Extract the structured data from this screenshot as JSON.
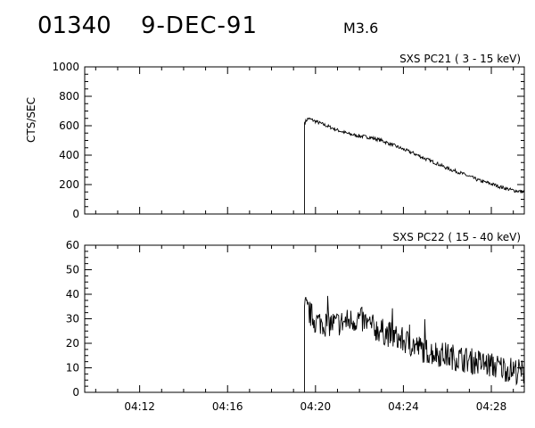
{
  "header": {
    "event_id": "01340",
    "date": "9-DEC-91",
    "flare_class": "M3.6"
  },
  "chart_data": [
    {
      "type": "line",
      "title": "SXS PC21  (  3 - 15 keV)",
      "ylabel": "CTS/SEC",
      "xlabel": "",
      "xlim": [
        "04:09:30",
        "04:29:30"
      ],
      "ylim": [
        0,
        1000
      ],
      "yticks": [
        "0",
        "200",
        "400",
        "600",
        "800",
        "1000"
      ],
      "xtick_labels_shown": false,
      "grid": false,
      "color": "#000000",
      "series": [
        {
          "points": [
            [
              "04:19:30",
              0
            ],
            [
              "04:19:30",
              620
            ],
            [
              "04:19:40",
              650
            ],
            [
              "04:20:00",
              630
            ],
            [
              "04:20:30",
              600
            ],
            [
              "04:21:00",
              570
            ],
            [
              "04:21:30",
              545
            ],
            [
              "04:22:00",
              530
            ],
            [
              "04:22:30",
              520
            ],
            [
              "04:23:00",
              500
            ],
            [
              "04:23:30",
              470
            ],
            [
              "04:24:00",
              440
            ],
            [
              "04:24:30",
              410
            ],
            [
              "04:25:00",
              375
            ],
            [
              "04:25:30",
              345
            ],
            [
              "04:26:00",
              310
            ],
            [
              "04:26:30",
              285
            ],
            [
              "04:27:00",
              255
            ],
            [
              "04:27:30",
              225
            ],
            [
              "04:28:00",
              205
            ],
            [
              "04:28:30",
              180
            ],
            [
              "04:29:00",
              160
            ],
            [
              "04:29:30",
              150
            ]
          ]
        }
      ]
    },
    {
      "type": "line",
      "title": "SXS PC22  ( 15 - 40 keV)",
      "ylabel": "",
      "xlabel": "",
      "xlim": [
        "04:09:30",
        "04:29:30"
      ],
      "ylim": [
        0,
        60
      ],
      "yticks": [
        "0",
        "10",
        "20",
        "30",
        "40",
        "50",
        "60"
      ],
      "xticks": [
        "04:12",
        "04:16",
        "04:20",
        "04:24",
        "04:28"
      ],
      "grid": false,
      "color": "#000000",
      "series": [
        {
          "points": [
            [
              "04:19:30",
              0
            ],
            [
              "04:19:30",
              35
            ],
            [
              "04:20:00",
              29
            ],
            [
              "04:20:30",
              28
            ],
            [
              "04:21:00",
              28
            ],
            [
              "04:21:30",
              29
            ],
            [
              "04:22:00",
              30
            ],
            [
              "04:22:30",
              27
            ],
            [
              "04:23:00",
              25
            ],
            [
              "04:23:30",
              23
            ],
            [
              "04:24:00",
              21
            ],
            [
              "04:24:30",
              19
            ],
            [
              "04:25:00",
              17
            ],
            [
              "04:25:30",
              16
            ],
            [
              "04:26:00",
              15
            ],
            [
              "04:26:30",
              14
            ],
            [
              "04:27:00",
              13
            ],
            [
              "04:27:30",
              12
            ],
            [
              "04:28:00",
              11
            ],
            [
              "04:28:30",
              10
            ],
            [
              "04:29:00",
              9
            ],
            [
              "04:29:30",
              8
            ]
          ]
        }
      ]
    }
  ]
}
